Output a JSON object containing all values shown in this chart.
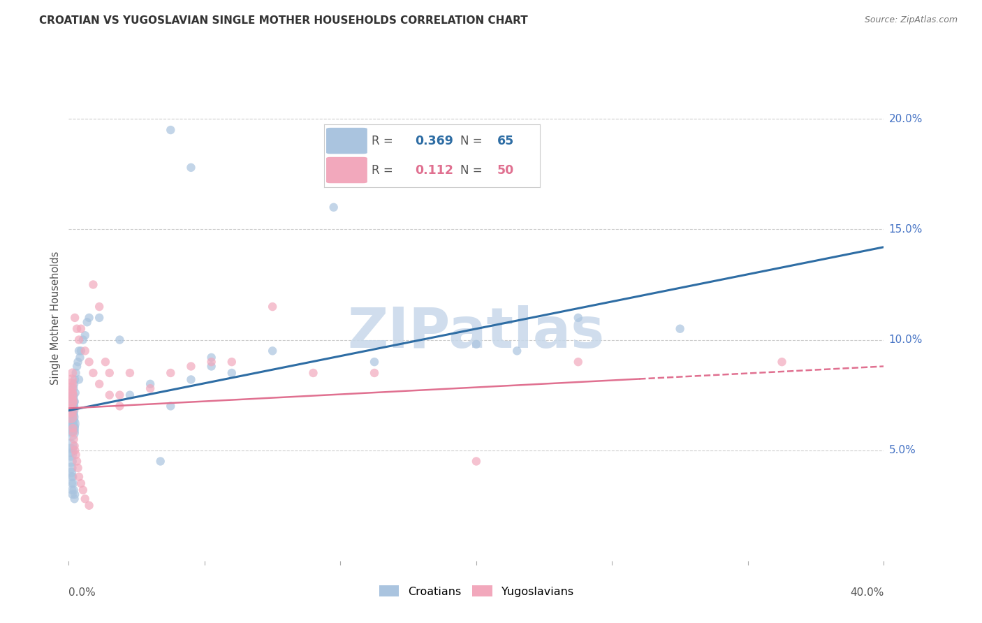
{
  "title": "CROATIAN VS YUGOSLAVIAN SINGLE MOTHER HOUSEHOLDS CORRELATION CHART",
  "source": "Source: ZipAtlas.com",
  "ylabel": "Single Mother Households",
  "x_range": [
    0.0,
    40.0
  ],
  "y_range": [
    0.0,
    22.0
  ],
  "croatian_color": "#aac4df",
  "yugoslavian_color": "#f2a8bc",
  "croatian_line_color": "#2e6da4",
  "yugoslavian_line_color": "#e07090",
  "watermark": "ZIPatlas",
  "cr_line_x0": 0.0,
  "cr_line_y0": 6.8,
  "cr_line_x1": 40.0,
  "cr_line_y1": 14.2,
  "yu_line_x0": 0.0,
  "yu_line_y0": 6.9,
  "yu_line_x1": 40.0,
  "yu_line_y1": 8.8,
  "yu_dash_start": 28.0,
  "croatian_points": [
    [
      0.08,
      6.2
    ],
    [
      0.09,
      6.0
    ],
    [
      0.1,
      5.8
    ],
    [
      0.1,
      6.5
    ],
    [
      0.11,
      6.8
    ],
    [
      0.12,
      7.0
    ],
    [
      0.13,
      7.2
    ],
    [
      0.14,
      6.9
    ],
    [
      0.15,
      7.1
    ],
    [
      0.16,
      7.4
    ],
    [
      0.17,
      6.6
    ],
    [
      0.18,
      6.3
    ],
    [
      0.19,
      6.1
    ],
    [
      0.2,
      5.9
    ],
    [
      0.2,
      7.5
    ],
    [
      0.22,
      7.8
    ],
    [
      0.25,
      8.0
    ],
    [
      0.28,
      7.2
    ],
    [
      0.3,
      8.2
    ],
    [
      0.32,
      7.6
    ],
    [
      0.35,
      8.5
    ],
    [
      0.4,
      8.8
    ],
    [
      0.45,
      9.0
    ],
    [
      0.5,
      8.2
    ],
    [
      0.55,
      9.2
    ],
    [
      0.6,
      9.5
    ],
    [
      0.7,
      10.0
    ],
    [
      0.8,
      10.2
    ],
    [
      0.9,
      10.8
    ],
    [
      1.0,
      11.0
    ],
    [
      0.08,
      5.2
    ],
    [
      0.09,
      5.0
    ],
    [
      0.1,
      4.8
    ],
    [
      0.11,
      4.5
    ],
    [
      0.12,
      4.2
    ],
    [
      0.13,
      4.0
    ],
    [
      0.14,
      3.8
    ],
    [
      0.15,
      3.5
    ],
    [
      0.16,
      3.2
    ],
    [
      0.18,
      3.0
    ],
    [
      0.2,
      3.8
    ],
    [
      0.22,
      3.5
    ],
    [
      0.25,
      3.2
    ],
    [
      0.28,
      2.8
    ],
    [
      0.3,
      3.0
    ],
    [
      4.5,
      4.5
    ],
    [
      5.0,
      19.5
    ],
    [
      6.0,
      17.8
    ],
    [
      13.0,
      16.0
    ],
    [
      0.5,
      9.5
    ],
    [
      22.0,
      9.5
    ],
    [
      25.0,
      11.0
    ],
    [
      30.0,
      10.5
    ],
    [
      7.0,
      8.8
    ],
    [
      8.0,
      8.5
    ],
    [
      10.0,
      9.5
    ],
    [
      15.0,
      9.0
    ],
    [
      20.0,
      9.8
    ],
    [
      1.5,
      11.0
    ],
    [
      2.5,
      10.0
    ],
    [
      3.0,
      7.5
    ],
    [
      4.0,
      8.0
    ],
    [
      5.0,
      7.0
    ],
    [
      6.0,
      8.2
    ],
    [
      7.0,
      9.2
    ]
  ],
  "yugoslavian_points": [
    [
      0.08,
      7.2
    ],
    [
      0.09,
      6.8
    ],
    [
      0.1,
      7.5
    ],
    [
      0.11,
      6.5
    ],
    [
      0.12,
      7.8
    ],
    [
      0.13,
      8.0
    ],
    [
      0.14,
      7.2
    ],
    [
      0.15,
      8.2
    ],
    [
      0.16,
      7.6
    ],
    [
      0.18,
      8.5
    ],
    [
      0.2,
      6.0
    ],
    [
      0.22,
      5.8
    ],
    [
      0.25,
      5.5
    ],
    [
      0.28,
      5.2
    ],
    [
      0.3,
      5.0
    ],
    [
      0.35,
      4.8
    ],
    [
      0.4,
      4.5
    ],
    [
      0.45,
      4.2
    ],
    [
      0.5,
      3.8
    ],
    [
      0.6,
      3.5
    ],
    [
      0.7,
      3.2
    ],
    [
      0.8,
      2.8
    ],
    [
      1.0,
      2.5
    ],
    [
      1.2,
      12.5
    ],
    [
      1.5,
      11.5
    ],
    [
      1.8,
      9.0
    ],
    [
      2.0,
      8.5
    ],
    [
      2.5,
      7.5
    ],
    [
      3.0,
      8.5
    ],
    [
      4.0,
      7.8
    ],
    [
      5.0,
      8.5
    ],
    [
      6.0,
      8.8
    ],
    [
      7.0,
      9.0
    ],
    [
      8.0,
      9.0
    ],
    [
      10.0,
      11.5
    ],
    [
      12.0,
      8.5
    ],
    [
      15.0,
      8.5
    ],
    [
      20.0,
      4.5
    ],
    [
      25.0,
      9.0
    ],
    [
      35.0,
      9.0
    ],
    [
      0.3,
      11.0
    ],
    [
      0.4,
      10.5
    ],
    [
      0.5,
      10.0
    ],
    [
      0.6,
      10.5
    ],
    [
      0.8,
      9.5
    ],
    [
      1.0,
      9.0
    ],
    [
      1.2,
      8.5
    ],
    [
      1.5,
      8.0
    ],
    [
      2.0,
      7.5
    ],
    [
      2.5,
      7.0
    ]
  ],
  "croatian_sizes": [
    350,
    300,
    280,
    260,
    240,
    220,
    200,
    180,
    160,
    150,
    140,
    130,
    120,
    110,
    100,
    95,
    90,
    85,
    80,
    80,
    80,
    80,
    80,
    80,
    80,
    80,
    80,
    80,
    80,
    80,
    200,
    180,
    160,
    140,
    120,
    100,
    90,
    80,
    80,
    80,
    80,
    80,
    80,
    80,
    80,
    80,
    80,
    80,
    80,
    80,
    80,
    80,
    80,
    80,
    80,
    80,
    80,
    80,
    80,
    80,
    80,
    80,
    80,
    80,
    80
  ],
  "yugoslavian_sizes": [
    220,
    200,
    180,
    160,
    140,
    130,
    120,
    110,
    100,
    90,
    80,
    80,
    80,
    80,
    80,
    80,
    80,
    80,
    80,
    80,
    80,
    80,
    80,
    80,
    80,
    80,
    80,
    80,
    80,
    80,
    80,
    80,
    80,
    80,
    80,
    80,
    80,
    80,
    80,
    80,
    80,
    80,
    80,
    80,
    80,
    80,
    80,
    80,
    80,
    80
  ],
  "y_tick_vals": [
    5.0,
    10.0,
    15.0,
    20.0
  ],
  "right_label_color": "#4472c4",
  "grid_color": "#cccccc",
  "legend_box_color": "#cccccc"
}
